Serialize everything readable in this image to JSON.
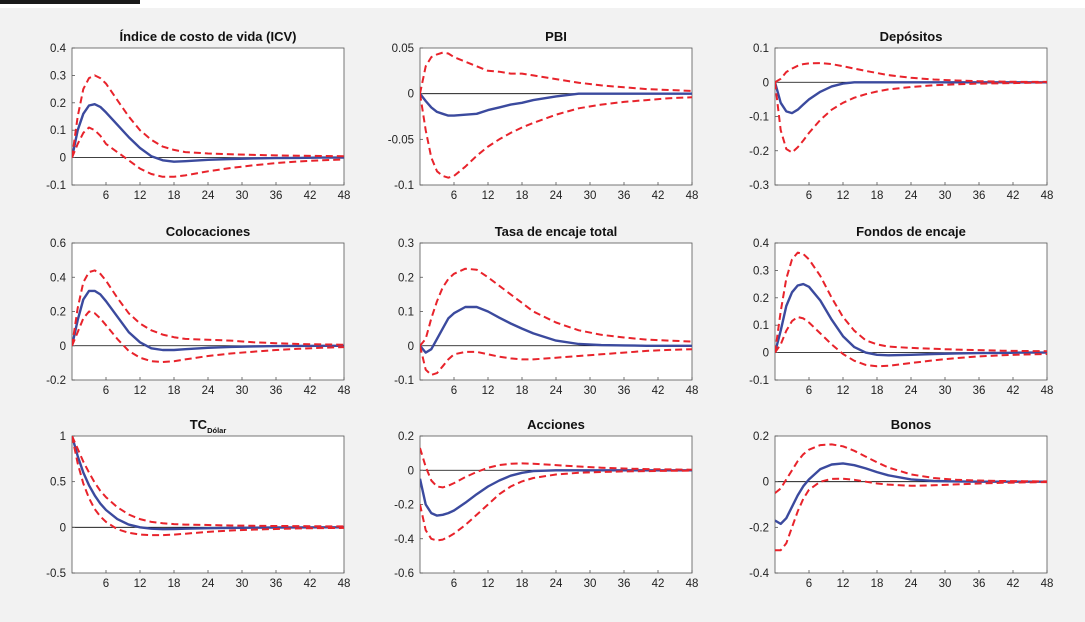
{
  "colors": {
    "background": "#f2f2f2",
    "plot_area": "#ffffff",
    "median": "#3b4a9e",
    "bands": "#e8232b",
    "zero_line": "#000000",
    "axis": "#555555"
  },
  "chart_data": [
    {
      "type": "line",
      "title": "Índice de costo de vida (ICV)",
      "xlim": [
        0,
        48
      ],
      "ylim": [
        -0.1,
        0.4
      ],
      "xticks": [
        6,
        12,
        18,
        24,
        30,
        36,
        42,
        48
      ],
      "yticks": [
        -0.1,
        0,
        0.1,
        0.2,
        0.3,
        0.4
      ],
      "ytick_labels": [
        "-0.1",
        "0",
        "0.1",
        "0.2",
        "0.3",
        "0.4"
      ],
      "x": [
        0,
        1,
        2,
        3,
        4,
        5,
        6,
        8,
        10,
        12,
        14,
        16,
        18,
        20,
        24,
        28,
        32,
        36,
        40,
        44,
        48
      ],
      "series": [
        {
          "role": "median",
          "values": [
            0,
            0.1,
            0.16,
            0.19,
            0.195,
            0.185,
            0.165,
            0.12,
            0.075,
            0.035,
            0.005,
            -0.01,
            -0.015,
            -0.013,
            -0.008,
            -0.005,
            -0.003,
            -0.002,
            -0.001,
            0,
            0
          ]
        },
        {
          "role": "upper",
          "values": [
            0,
            0.15,
            0.25,
            0.29,
            0.3,
            0.29,
            0.27,
            0.21,
            0.15,
            0.1,
            0.065,
            0.04,
            0.028,
            0.02,
            0.015,
            0.012,
            0.01,
            0.008,
            0.007,
            0.006,
            0.005
          ]
        },
        {
          "role": "lower",
          "values": [
            0,
            0.05,
            0.09,
            0.11,
            0.1,
            0.08,
            0.05,
            0.02,
            -0.01,
            -0.04,
            -0.06,
            -0.07,
            -0.07,
            -0.065,
            -0.05,
            -0.038,
            -0.028,
            -0.02,
            -0.014,
            -0.01,
            -0.007
          ]
        }
      ]
    },
    {
      "type": "line",
      "title": "PBI",
      "xlim": [
        0,
        48
      ],
      "ylim": [
        -0.1,
        0.05
      ],
      "xticks": [
        6,
        12,
        18,
        24,
        30,
        36,
        42,
        48
      ],
      "yticks": [
        -0.1,
        -0.05,
        0,
        0.05
      ],
      "ytick_labels": [
        "-0.1",
        "-0.05",
        "0",
        "0.05"
      ],
      "x": [
        0,
        1,
        2,
        3,
        4,
        5,
        6,
        8,
        10,
        12,
        14,
        16,
        18,
        20,
        24,
        28,
        32,
        36,
        40,
        44,
        48
      ],
      "series": [
        {
          "role": "median",
          "values": [
            0,
            -0.008,
            -0.015,
            -0.02,
            -0.022,
            -0.024,
            -0.024,
            -0.023,
            -0.022,
            -0.018,
            -0.015,
            -0.012,
            -0.01,
            -0.007,
            -0.003,
            0,
            0,
            0,
            0,
            0,
            0
          ]
        },
        {
          "role": "upper",
          "values": [
            0,
            0.03,
            0.04,
            0.043,
            0.045,
            0.044,
            0.04,
            0.035,
            0.03,
            0.025,
            0.024,
            0.022,
            0.022,
            0.02,
            0.016,
            0.012,
            0.009,
            0.007,
            0.005,
            0.004,
            0.003
          ]
        },
        {
          "role": "lower",
          "values": [
            0,
            -0.04,
            -0.07,
            -0.085,
            -0.09,
            -0.092,
            -0.09,
            -0.08,
            -0.068,
            -0.058,
            -0.05,
            -0.043,
            -0.037,
            -0.032,
            -0.023,
            -0.016,
            -0.012,
            -0.009,
            -0.007,
            -0.005,
            -0.004
          ]
        }
      ]
    },
    {
      "type": "line",
      "title": "Depósitos",
      "xlim": [
        0,
        48
      ],
      "ylim": [
        -0.3,
        0.1
      ],
      "xticks": [
        6,
        12,
        18,
        24,
        30,
        36,
        42,
        48
      ],
      "yticks": [
        -0.3,
        -0.2,
        -0.1,
        0,
        0.1
      ],
      "ytick_labels": [
        "-0.3",
        "-0.2",
        "-0.1",
        "0",
        "0.1"
      ],
      "x": [
        0,
        1,
        2,
        3,
        4,
        5,
        6,
        8,
        10,
        12,
        14,
        16,
        18,
        20,
        24,
        28,
        32,
        36,
        40,
        44,
        48
      ],
      "series": [
        {
          "role": "median",
          "values": [
            0,
            -0.06,
            -0.085,
            -0.09,
            -0.08,
            -0.065,
            -0.05,
            -0.028,
            -0.012,
            -0.004,
            0,
            0,
            0,
            0,
            0,
            0,
            0,
            0,
            0,
            0,
            0
          ]
        },
        {
          "role": "upper",
          "values": [
            0,
            0.01,
            0.03,
            0.04,
            0.048,
            0.053,
            0.055,
            0.056,
            0.053,
            0.047,
            0.04,
            0.033,
            0.027,
            0.021,
            0.013,
            0.008,
            0.005,
            0.003,
            0.002,
            0.001,
            0.001
          ]
        },
        {
          "role": "lower",
          "values": [
            0,
            -0.14,
            -0.195,
            -0.205,
            -0.19,
            -0.17,
            -0.148,
            -0.11,
            -0.08,
            -0.06,
            -0.045,
            -0.035,
            -0.027,
            -0.021,
            -0.014,
            -0.009,
            -0.006,
            -0.004,
            -0.003,
            -0.002,
            -0.001
          ]
        }
      ]
    },
    {
      "type": "line",
      "title": "Colocaciones",
      "xlim": [
        0,
        48
      ],
      "ylim": [
        -0.2,
        0.6
      ],
      "xticks": [
        6,
        12,
        18,
        24,
        30,
        36,
        42,
        48
      ],
      "yticks": [
        -0.2,
        0,
        0.2,
        0.4,
        0.6
      ],
      "ytick_labels": [
        "-0.2",
        "0",
        "0.2",
        "0.4",
        "0.6"
      ],
      "x": [
        0,
        1,
        2,
        3,
        4,
        5,
        6,
        8,
        10,
        12,
        14,
        16,
        18,
        20,
        24,
        28,
        32,
        36,
        40,
        44,
        48
      ],
      "series": [
        {
          "role": "median",
          "values": [
            0,
            0.15,
            0.27,
            0.32,
            0.32,
            0.3,
            0.26,
            0.17,
            0.08,
            0.02,
            -0.015,
            -0.025,
            -0.025,
            -0.02,
            -0.012,
            -0.007,
            -0.004,
            -0.002,
            -0.001,
            0,
            0
          ]
        },
        {
          "role": "upper",
          "values": [
            0,
            0.22,
            0.37,
            0.43,
            0.44,
            0.42,
            0.38,
            0.28,
            0.19,
            0.13,
            0.09,
            0.065,
            0.05,
            0.04,
            0.035,
            0.03,
            0.02,
            0.015,
            0.01,
            0.008,
            0.006
          ]
        },
        {
          "role": "lower",
          "values": [
            0,
            0.08,
            0.16,
            0.2,
            0.19,
            0.16,
            0.12,
            0.04,
            -0.03,
            -0.07,
            -0.09,
            -0.095,
            -0.09,
            -0.08,
            -0.06,
            -0.045,
            -0.035,
            -0.025,
            -0.018,
            -0.012,
            -0.008
          ]
        }
      ]
    },
    {
      "type": "line",
      "title": "Tasa de encaje total",
      "xlim": [
        0,
        48
      ],
      "ylim": [
        -0.1,
        0.3
      ],
      "xticks": [
        6,
        12,
        18,
        24,
        30,
        36,
        42,
        48
      ],
      "yticks": [
        -0.1,
        0,
        0.1,
        0.2,
        0.3
      ],
      "ytick_labels": [
        "-0.1",
        "0",
        "0.1",
        "0.2",
        "0.3"
      ],
      "x": [
        0,
        1,
        2,
        3,
        4,
        5,
        6,
        8,
        10,
        12,
        14,
        16,
        18,
        20,
        24,
        28,
        32,
        36,
        40,
        44,
        48
      ],
      "series": [
        {
          "role": "median",
          "values": [
            0,
            -0.02,
            -0.01,
            0.02,
            0.05,
            0.08,
            0.095,
            0.113,
            0.113,
            0.1,
            0.082,
            0.065,
            0.05,
            0.036,
            0.015,
            0.005,
            0.002,
            0.001,
            0,
            0,
            0
          ]
        },
        {
          "role": "upper",
          "values": [
            0,
            0.02,
            0.08,
            0.13,
            0.17,
            0.195,
            0.21,
            0.225,
            0.222,
            0.2,
            0.175,
            0.15,
            0.125,
            0.1,
            0.068,
            0.045,
            0.032,
            0.024,
            0.018,
            0.015,
            0.012
          ]
        },
        {
          "role": "lower",
          "values": [
            0,
            -0.07,
            -0.085,
            -0.08,
            -0.06,
            -0.04,
            -0.025,
            -0.018,
            -0.018,
            -0.025,
            -0.032,
            -0.037,
            -0.04,
            -0.04,
            -0.035,
            -0.03,
            -0.025,
            -0.02,
            -0.015,
            -0.012,
            -0.01
          ]
        }
      ]
    },
    {
      "type": "line",
      "title": "Fondos de encaje",
      "xlim": [
        0,
        48
      ],
      "ylim": [
        -0.1,
        0.4
      ],
      "xticks": [
        6,
        12,
        18,
        24,
        30,
        36,
        42,
        48
      ],
      "yticks": [
        -0.1,
        0,
        0.1,
        0.2,
        0.3,
        0.4
      ],
      "ytick_labels": [
        "-0.1",
        "0",
        "0.1",
        "0.2",
        "0.3",
        "0.4"
      ],
      "x": [
        0,
        1,
        2,
        3,
        4,
        5,
        6,
        8,
        10,
        12,
        14,
        16,
        18,
        20,
        24,
        28,
        32,
        36,
        40,
        44,
        48
      ],
      "series": [
        {
          "role": "median",
          "values": [
            0,
            0.08,
            0.17,
            0.22,
            0.245,
            0.25,
            0.24,
            0.19,
            0.12,
            0.06,
            0.02,
            0,
            -0.008,
            -0.01,
            -0.008,
            -0.005,
            -0.003,
            -0.002,
            -0.001,
            0,
            0
          ]
        },
        {
          "role": "upper",
          "values": [
            0,
            0.15,
            0.27,
            0.34,
            0.365,
            0.36,
            0.34,
            0.28,
            0.2,
            0.13,
            0.08,
            0.045,
            0.03,
            0.022,
            0.017,
            0.014,
            0.011,
            0.009,
            0.007,
            0.006,
            0.005
          ]
        },
        {
          "role": "lower",
          "values": [
            0,
            0.03,
            0.08,
            0.115,
            0.13,
            0.125,
            0.11,
            0.07,
            0.03,
            -0.005,
            -0.03,
            -0.045,
            -0.05,
            -0.048,
            -0.038,
            -0.028,
            -0.02,
            -0.014,
            -0.01,
            -0.007,
            -0.005
          ]
        }
      ]
    },
    {
      "type": "line",
      "title": "TC",
      "title_subscript": "Dólar",
      "xlim": [
        0,
        48
      ],
      "ylim": [
        -0.5,
        1
      ],
      "xticks": [
        6,
        12,
        18,
        24,
        30,
        36,
        42,
        48
      ],
      "yticks": [
        -0.5,
        0,
        0.5,
        1
      ],
      "ytick_labels": [
        "-0.5",
        "0",
        "0.5",
        "1"
      ],
      "x": [
        0,
        1,
        2,
        3,
        4,
        5,
        6,
        8,
        10,
        12,
        14,
        16,
        18,
        20,
        24,
        28,
        32,
        36,
        40,
        44,
        48
      ],
      "series": [
        {
          "role": "median",
          "values": [
            1,
            0.78,
            0.6,
            0.46,
            0.35,
            0.26,
            0.19,
            0.09,
            0.03,
            0,
            -0.015,
            -0.02,
            -0.018,
            -0.015,
            -0.01,
            -0.006,
            -0.004,
            -0.002,
            -0.001,
            0,
            0
          ]
        },
        {
          "role": "upper",
          "values": [
            1,
            0.86,
            0.72,
            0.6,
            0.49,
            0.4,
            0.33,
            0.22,
            0.14,
            0.09,
            0.06,
            0.045,
            0.035,
            0.03,
            0.025,
            0.02,
            0.017,
            0.015,
            0.013,
            0.011,
            0.01
          ]
        },
        {
          "role": "lower",
          "values": [
            1,
            0.7,
            0.48,
            0.32,
            0.2,
            0.12,
            0.06,
            -0.02,
            -0.06,
            -0.08,
            -0.085,
            -0.085,
            -0.08,
            -0.07,
            -0.05,
            -0.035,
            -0.025,
            -0.018,
            -0.012,
            -0.008,
            -0.006
          ]
        }
      ]
    },
    {
      "type": "line",
      "title": "Acciones",
      "xlim": [
        0,
        48
      ],
      "ylim": [
        -0.6,
        0.2
      ],
      "xticks": [
        6,
        12,
        18,
        24,
        30,
        36,
        42,
        48
      ],
      "yticks": [
        -0.6,
        -0.4,
        -0.2,
        0,
        0.2
      ],
      "ytick_labels": [
        "-0.6",
        "-0.4",
        "-0.2",
        "0",
        "0.2"
      ],
      "x": [
        0,
        1,
        2,
        3,
        4,
        5,
        6,
        8,
        10,
        12,
        14,
        16,
        18,
        20,
        24,
        28,
        32,
        36,
        40,
        44,
        48
      ],
      "series": [
        {
          "role": "median",
          "values": [
            -0.05,
            -0.2,
            -0.25,
            -0.265,
            -0.26,
            -0.25,
            -0.235,
            -0.19,
            -0.14,
            -0.095,
            -0.06,
            -0.032,
            -0.015,
            -0.005,
            0,
            0,
            0,
            0,
            0,
            0,
            0
          ]
        },
        {
          "role": "upper",
          "values": [
            0.13,
            0.02,
            -0.06,
            -0.095,
            -0.1,
            -0.09,
            -0.075,
            -0.04,
            -0.01,
            0.015,
            0.03,
            0.038,
            0.04,
            0.038,
            0.03,
            0.022,
            0.015,
            0.01,
            0.007,
            0.005,
            0.003
          ]
        },
        {
          "role": "lower",
          "values": [
            -0.2,
            -0.35,
            -0.4,
            -0.41,
            -0.405,
            -0.39,
            -0.37,
            -0.32,
            -0.26,
            -0.2,
            -0.14,
            -0.095,
            -0.065,
            -0.045,
            -0.025,
            -0.015,
            -0.01,
            -0.007,
            -0.005,
            -0.003,
            -0.002
          ]
        }
      ]
    },
    {
      "type": "line",
      "title": "Bonos",
      "xlim": [
        0,
        48
      ],
      "ylim": [
        -0.4,
        0.2
      ],
      "xticks": [
        6,
        12,
        18,
        24,
        30,
        36,
        42,
        48
      ],
      "yticks": [
        -0.4,
        -0.2,
        0,
        0.2
      ],
      "ytick_labels": [
        "-0.4",
        "-0.2",
        "0",
        "0.2"
      ],
      "x": [
        0,
        1,
        2,
        3,
        4,
        5,
        6,
        8,
        10,
        12,
        14,
        16,
        18,
        20,
        24,
        28,
        32,
        36,
        40,
        44,
        48
      ],
      "series": [
        {
          "role": "median",
          "values": [
            -0.17,
            -0.185,
            -0.16,
            -0.11,
            -0.06,
            -0.02,
            0.01,
            0.055,
            0.075,
            0.08,
            0.072,
            0.058,
            0.042,
            0.028,
            0.01,
            0.003,
            0.001,
            0,
            0,
            0,
            0
          ]
        },
        {
          "role": "upper",
          "values": [
            -0.05,
            -0.03,
            0.01,
            0.05,
            0.09,
            0.12,
            0.14,
            0.16,
            0.163,
            0.155,
            0.135,
            0.11,
            0.085,
            0.062,
            0.032,
            0.016,
            0.008,
            0.005,
            0.003,
            0.002,
            0.001
          ]
        },
        {
          "role": "lower",
          "values": [
            -0.3,
            -0.3,
            -0.27,
            -0.2,
            -0.13,
            -0.075,
            -0.035,
            0,
            0.012,
            0.013,
            0.008,
            0,
            -0.008,
            -0.013,
            -0.018,
            -0.016,
            -0.012,
            -0.008,
            -0.005,
            -0.003,
            -0.002
          ]
        }
      ]
    }
  ]
}
